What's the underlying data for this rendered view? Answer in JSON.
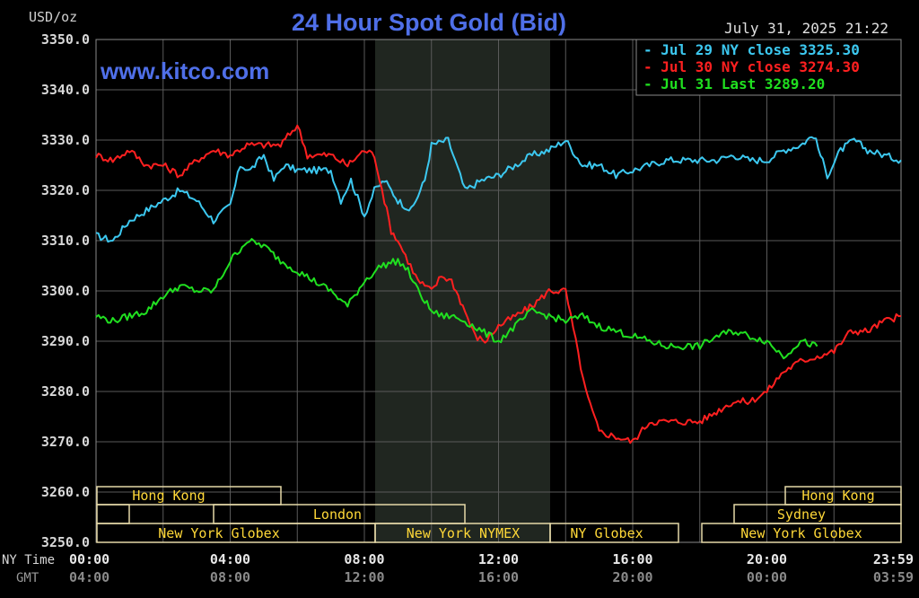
{
  "chart_data": {
    "type": "line",
    "title": "24 Hour Spot Gold (Bid)",
    "watermark": "www.kitco.com",
    "unit_label": "USD/oz",
    "timestamp": "July 31, 2025 21:22",
    "ylim": [
      3250,
      3350
    ],
    "yticks": [
      "3350.0",
      "3340.0",
      "3330.0",
      "3320.0",
      "3310.0",
      "3300.0",
      "3290.0",
      "3280.0",
      "3270.0",
      "3260.0",
      "3250.0"
    ],
    "x_row_label_ny": "NY Time",
    "x_row_label_gmt": "GMT",
    "xticks_ny": [
      "00:00",
      "04:00",
      "08:00",
      "12:00",
      "16:00",
      "20:00",
      "23:59"
    ],
    "xticks_gmt": [
      "04:00",
      "08:00",
      "12:00",
      "16:00",
      "20:00",
      "00:00",
      "03:59"
    ],
    "legend": [
      {
        "text": "- Jul 29 NY close 3325.30",
        "color": "#3cc8f0"
      },
      {
        "text": "- Jul 30 NY close 3274.30",
        "color": "#ff2020"
      },
      {
        "text": "- Jul 31 Last 3289.20",
        "color": "#20e020"
      }
    ],
    "sessions": {
      "hong_kong_left": "Hong Kong",
      "london": "London",
      "ny_globex_left": "New York Globex",
      "ny_nymex": "New York NYMEX",
      "ny_globex_mid": "NY Globex",
      "hong_kong_right": "Hong Kong",
      "sydney": "Sydney",
      "ny_globex_right": "New York Globex"
    },
    "series": [
      {
        "name": "Jul 29",
        "color": "#3cc8f0",
        "x": [
          0,
          0.5,
          1,
          1.5,
          2,
          2.5,
          3,
          3.5,
          4,
          4.3,
          4.6,
          5,
          5.3,
          5.6,
          6,
          6.5,
          7,
          7.3,
          7.6,
          8,
          8.3,
          8.6,
          9,
          9.4,
          9.8,
          10,
          10.5,
          11,
          11.5,
          12,
          12.5,
          13,
          13.5,
          14,
          14.5,
          15,
          15.5,
          16,
          16.5,
          17,
          17.5,
          18,
          18.5,
          19,
          19.5,
          20,
          20.5,
          21,
          21.4,
          21.8,
          22.2,
          22.6,
          23,
          23.5,
          24
        ],
        "values": [
          3311,
          3310,
          3314,
          3316,
          3318,
          3320,
          3318,
          3314,
          3317,
          3325,
          3324,
          3327,
          3322,
          3325,
          3324,
          3324,
          3324,
          3318,
          3322,
          3315,
          3320,
          3322,
          3318,
          3316,
          3322,
          3329,
          3330,
          3320,
          3322,
          3323,
          3325,
          3327,
          3328,
          3330,
          3325,
          3325,
          3323,
          3324,
          3325,
          3326,
          3326,
          3326,
          3326,
          3327,
          3326,
          3326,
          3328,
          3329,
          3331,
          3323,
          3328,
          3330,
          3328,
          3327,
          3326
        ]
      },
      {
        "name": "Jul 30",
        "color": "#ff2020",
        "x": [
          0,
          0.5,
          1,
          1.5,
          2,
          2.5,
          3,
          3.5,
          4,
          4.5,
          5,
          5.5,
          6,
          6.3,
          6.6,
          7,
          7.5,
          8,
          8.3,
          8.6,
          8.8,
          9,
          9.3,
          9.6,
          10,
          10.3,
          10.6,
          11,
          11.3,
          11.6,
          12,
          12.5,
          13,
          13.5,
          14,
          14.3,
          14.6,
          15,
          15.5,
          16,
          16.5,
          17,
          17.5,
          18,
          18.5,
          19,
          19.5,
          20,
          20.5,
          21,
          21.5,
          22,
          22.5,
          23,
          23.5,
          24
        ],
        "values": [
          3327,
          3326,
          3328,
          3325,
          3325,
          3323,
          3326,
          3328,
          3327,
          3329,
          3329,
          3329,
          3333,
          3327,
          3327,
          3327,
          3325,
          3328,
          3327,
          3318,
          3312,
          3310,
          3306,
          3302,
          3300,
          3303,
          3302,
          3296,
          3291,
          3290,
          3293,
          3295,
          3297,
          3300,
          3300,
          3290,
          3280,
          3272,
          3271,
          3270,
          3274,
          3274,
          3274,
          3274,
          3276,
          3278,
          3278,
          3280,
          3284,
          3286,
          3287,
          3288,
          3292,
          3292,
          3294,
          3295
        ]
      },
      {
        "name": "Jul 31",
        "color": "#20e020",
        "x": [
          0,
          0.5,
          1,
          1.5,
          2,
          2.5,
          3,
          3.5,
          4,
          4.5,
          5,
          5.5,
          6,
          6.5,
          7,
          7.5,
          8,
          8.5,
          9,
          9.3,
          9.6,
          10,
          10.3,
          10.6,
          11,
          11.5,
          12,
          12.5,
          13,
          13.5,
          14,
          14.5,
          15,
          15.5,
          16,
          16.5,
          17,
          17.5,
          18,
          18.5,
          19,
          19.5,
          20,
          20.5,
          21,
          21.5
        ],
        "values": [
          3295,
          3294,
          3295,
          3296,
          3299,
          3301,
          3300,
          3300,
          3306,
          3310,
          3309,
          3306,
          3304,
          3302,
          3300,
          3297,
          3302,
          3305,
          3306,
          3304,
          3300,
          3296,
          3295,
          3295,
          3294,
          3292,
          3290,
          3293,
          3296,
          3295,
          3294,
          3295,
          3293,
          3292,
          3291,
          3290,
          3289,
          3289,
          3289,
          3291,
          3292,
          3291,
          3290,
          3287,
          3290,
          3289
        ]
      }
    ]
  }
}
